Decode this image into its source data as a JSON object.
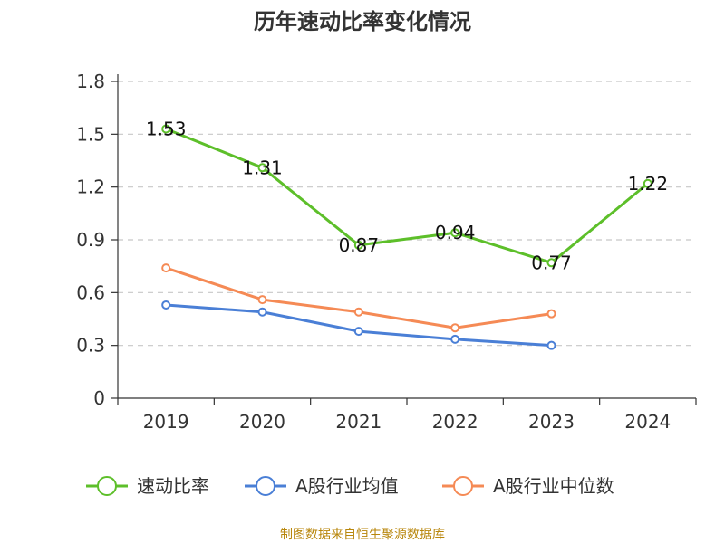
{
  "chart_data": {
    "type": "line",
    "title": "历年速动比率变化情况",
    "categories": [
      "2019",
      "2020",
      "2021",
      "2022",
      "2023",
      "2024"
    ],
    "ylim": [
      0,
      1.8
    ],
    "yticks": [
      "0",
      "0.3",
      "0.6",
      "0.9",
      "1.2",
      "1.5",
      "1.8"
    ],
    "grid": true,
    "legend_position": "bottom",
    "series": [
      {
        "name": "速动比率",
        "color": "#5dbf2a",
        "values": [
          1.53,
          1.31,
          0.87,
          0.94,
          0.77,
          1.22
        ],
        "labels": [
          "1.53",
          "1.31",
          "0.87",
          "0.94",
          "0.77",
          "1.22"
        ]
      },
      {
        "name": "A股行业均值",
        "color": "#4a7fd6",
        "values": [
          0.53,
          0.49,
          0.38,
          0.335,
          0.3,
          null
        ]
      },
      {
        "name": "A股行业中位数",
        "color": "#f58a55",
        "values": [
          0.74,
          0.56,
          0.49,
          0.4,
          0.48,
          null
        ]
      }
    ]
  },
  "source": "制图数据来自恒生聚源数据库"
}
